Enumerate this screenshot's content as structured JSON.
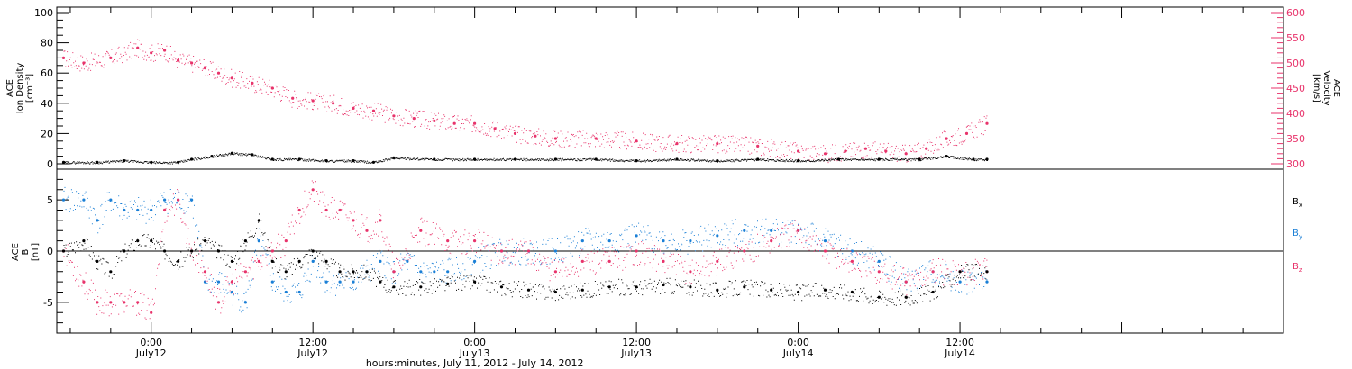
{
  "chart_data": [
    {
      "type": "scatter",
      "panel": "top",
      "ylabel_left": [
        "ACE",
        "Ion Density",
        "[cm⁻³]"
      ],
      "ylabel_right": [
        "ACE",
        "Velocity",
        "[km/s]"
      ],
      "ylim_left": [
        0,
        100
      ],
      "ylim_right": [
        300,
        600
      ],
      "left_ticks": [
        "0",
        "20",
        "40",
        "60",
        "80",
        "100"
      ],
      "right_ticks": [
        "300",
        "350",
        "400",
        "450",
        "500",
        "550",
        "600"
      ],
      "series": [
        {
          "name": "Ion Density",
          "color": "#000000",
          "axis": "left",
          "x_hours": [
            -6.5,
            -4,
            -2,
            0,
            2,
            3,
            4.5,
            6,
            7.5,
            9,
            11,
            13,
            15,
            16.5,
            18,
            21,
            24,
            27,
            30,
            33,
            36,
            39,
            42,
            45,
            48,
            51,
            54,
            57,
            59,
            61,
            62
          ],
          "y": [
            1,
            1,
            2,
            1,
            1,
            3,
            5,
            7,
            6,
            3,
            3,
            2,
            2,
            1,
            4,
            3,
            3,
            3,
            3,
            3,
            2,
            3,
            2,
            3,
            2,
            3,
            3,
            3,
            5,
            3,
            3
          ]
        },
        {
          "name": "Velocity",
          "color": "#e8336b",
          "axis": "right",
          "x_hours": [
            -6.5,
            -5,
            -3,
            -1,
            0,
            1,
            2,
            3,
            4,
            5,
            6,
            7.5,
            9,
            10.5,
            12,
            13.5,
            15,
            16.5,
            18,
            19.5,
            21,
            22.5,
            24,
            25.5,
            27,
            28.5,
            30,
            33,
            36,
            39,
            42,
            45,
            48,
            50,
            51.5,
            53,
            54.5,
            56,
            57.5,
            59,
            60.5,
            62
          ],
          "y": [
            510,
            500,
            510,
            530,
            520,
            525,
            505,
            500,
            490,
            480,
            470,
            460,
            450,
            430,
            425,
            420,
            410,
            405,
            395,
            390,
            385,
            380,
            380,
            370,
            360,
            355,
            350,
            350,
            345,
            340,
            340,
            335,
            325,
            320,
            325,
            330,
            325,
            320,
            330,
            350,
            360,
            380
          ]
        }
      ]
    },
    {
      "type": "scatter",
      "panel": "bottom",
      "ylabel_left": [
        "ACE",
        "B",
        "[nT]"
      ],
      "ylim": [
        -8,
        8
      ],
      "left_ticks": [
        "-5",
        "0",
        "5"
      ],
      "legend_placement": "right",
      "legend": [
        {
          "label": "B",
          "sub": "x",
          "color": "#000000"
        },
        {
          "label": "B",
          "sub": "y",
          "color": "#1a7fd6"
        },
        {
          "label": "B",
          "sub": "z",
          "color": "#e8336b"
        }
      ],
      "series": [
        {
          "name": "Bx",
          "color": "#000000",
          "x_hours": [
            -6.5,
            -5,
            -4,
            -3,
            -2,
            -1,
            0,
            1,
            2,
            3,
            4,
            5,
            6,
            7,
            8,
            9,
            10,
            11,
            12,
            13,
            14,
            15,
            16,
            17,
            18,
            20,
            22,
            24,
            26,
            28,
            30,
            32,
            34,
            36,
            38,
            40,
            42,
            44,
            46,
            48,
            50,
            52,
            54,
            56,
            58,
            60,
            62
          ],
          "y": [
            0,
            1,
            -1,
            -2,
            0,
            1,
            1,
            0,
            -1,
            0,
            1,
            0,
            -1,
            1,
            3,
            -1,
            -2,
            -1,
            0,
            -1,
            -2,
            -2,
            -2,
            -3,
            -3.5,
            -3.5,
            -3.2,
            -3,
            -3.5,
            -3.8,
            -4,
            -3.8,
            -3.5,
            -3.5,
            -3.3,
            -3.5,
            -3.8,
            -3.5,
            -3.8,
            -4,
            -3.8,
            -4,
            -4.5,
            -4.5,
            -4,
            -2,
            -2
          ]
        },
        {
          "name": "By",
          "color": "#1a7fd6",
          "x_hours": [
            -6.5,
            -5,
            -4,
            -3,
            -2,
            -1,
            0,
            1,
            2,
            3,
            4,
            5,
            6,
            7,
            8,
            9,
            10,
            11,
            12,
            13,
            14,
            15,
            16,
            17,
            18,
            19,
            20,
            21,
            22,
            24,
            26,
            28,
            30,
            32,
            34,
            36,
            38,
            40,
            42,
            44,
            46,
            48,
            50,
            52,
            54,
            56,
            58,
            60,
            62
          ],
          "y": [
            5,
            5,
            3,
            5,
            4,
            4,
            4,
            5,
            5,
            5,
            -3,
            -3,
            -4,
            -5,
            1,
            -3,
            -4,
            -4,
            -1,
            -3,
            -3,
            -3,
            -2,
            -1,
            -2,
            -1,
            -2,
            -2,
            -2,
            -1,
            0,
            0,
            0,
            1,
            1,
            1.5,
            1,
            1,
            1.5,
            2,
            2,
            2,
            1,
            0,
            -1,
            -3,
            -2,
            -3,
            -3
          ]
        },
        {
          "name": "Bz",
          "color": "#e8336b",
          "x_hours": [
            -6.5,
            -5,
            -4,
            -3,
            -2,
            -1,
            0,
            1,
            2,
            3,
            4,
            5,
            6,
            7,
            8,
            9,
            10,
            11,
            12,
            13,
            14,
            15,
            16,
            17,
            18,
            20,
            22,
            24,
            26,
            28,
            30,
            32,
            34,
            36,
            38,
            40,
            42,
            44,
            46,
            48,
            50,
            52,
            54,
            56,
            58,
            60,
            62
          ],
          "y": [
            0,
            -3,
            -5,
            -5,
            -5,
            -5,
            -6,
            4,
            5,
            0,
            -2,
            -5,
            -3,
            -2,
            -1,
            0,
            1,
            4,
            6,
            4,
            4,
            3,
            2,
            3,
            -2,
            2,
            1,
            1,
            0,
            0,
            -2,
            -1,
            -1,
            0,
            -1,
            -2,
            -1,
            0,
            1,
            2,
            0,
            -1,
            -2,
            -3,
            -2,
            -2,
            -2
          ]
        }
      ]
    }
  ],
  "x_axis": {
    "xlim_hours": [
      -7,
      84
    ],
    "tick_labels": [
      {
        "hour": 0,
        "time": "0:00",
        "day": "July12"
      },
      {
        "hour": 12,
        "time": "12:00",
        "day": "July12"
      },
      {
        "hour": 24,
        "time": "0:00",
        "day": "July13"
      },
      {
        "hour": 36,
        "time": "12:00",
        "day": "July13"
      },
      {
        "hour": 48,
        "time": "0:00",
        "day": "July14"
      },
      {
        "hour": 60,
        "time": "12:00",
        "day": "July14"
      }
    ],
    "xlabel": "hours:minutes, July 11, 2012 - July 14, 2012"
  }
}
